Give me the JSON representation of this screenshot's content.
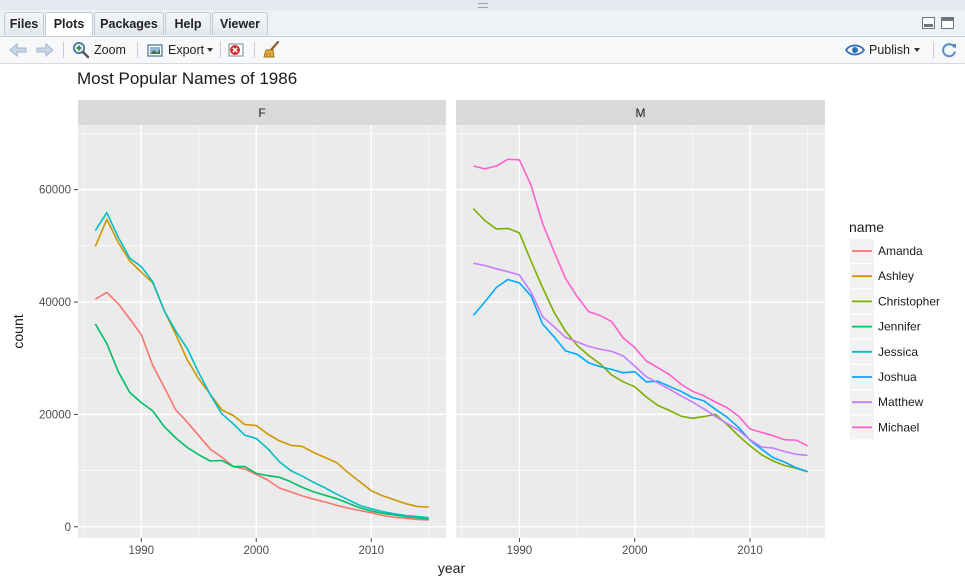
{
  "tabs": [
    {
      "label": "Files"
    },
    {
      "label": "Plots"
    },
    {
      "label": "Packages"
    },
    {
      "label": "Help"
    },
    {
      "label": "Viewer"
    }
  ],
  "toolbar": {
    "zoom_label": "Zoom",
    "export_label": "Export",
    "publish_label": "Publish"
  },
  "colors": {
    "panel_background": "#ebebeb",
    "strip_background": "#d9d9d9",
    "gridline": "#ffffff"
  },
  "chart_data": {
    "type": "line",
    "title": "Most Popular Names of 1986",
    "xlabel": "year",
    "ylabel": "count",
    "facets": [
      "F",
      "M"
    ],
    "legend_title": "name",
    "legend_position": "right",
    "grid": true,
    "xlim": [
      1984.5,
      2016.5
    ],
    "ylim": [
      -2000,
      71500
    ],
    "x_ticks": [
      1990,
      2000,
      2010
    ],
    "x_tick_labels": [
      "1990",
      "2000",
      "2010"
    ],
    "y_ticks": [
      0,
      20000,
      40000,
      60000
    ],
    "y_tick_labels": [
      "0",
      "20000",
      "40000",
      "60000"
    ],
    "x": [
      1986,
      1987,
      1988,
      1989,
      1990,
      1991,
      1992,
      1993,
      1994,
      1995,
      1996,
      1997,
      1998,
      1999,
      2000,
      2001,
      2002,
      2003,
      2004,
      2005,
      2006,
      2007,
      2008,
      2009,
      2010,
      2011,
      2012,
      2013,
      2014,
      2015
    ],
    "series": [
      {
        "name": "Amanda",
        "facet": "F",
        "color": "#F8766D",
        "values": [
          40500,
          41700,
          39700,
          37000,
          34200,
          28700,
          24800,
          20800,
          18600,
          16200,
          13800,
          12400,
          10700,
          10300,
          9300,
          8300,
          6900,
          6200,
          5500,
          4900,
          4400,
          3800,
          3300,
          2900,
          2500,
          2000,
          1700,
          1500,
          1300,
          1200
        ]
      },
      {
        "name": "Ashley",
        "facet": "F",
        "color": "#CD9600",
        "values": [
          49900,
          54700,
          50600,
          47300,
          45300,
          43400,
          38500,
          34200,
          29700,
          26300,
          23600,
          20800,
          19800,
          18200,
          18000,
          16500,
          15300,
          14500,
          14300,
          13200,
          12300,
          11400,
          9600,
          8000,
          6400,
          5500,
          4800,
          4100,
          3600,
          3500
        ]
      },
      {
        "name": "Christopher",
        "facet": "M",
        "color": "#7CAE00",
        "values": [
          56600,
          54500,
          53000,
          53100,
          52300,
          47300,
          42600,
          38200,
          34800,
          32300,
          30500,
          29000,
          27000,
          25800,
          24900,
          23100,
          21600,
          20700,
          19700,
          19300,
          19600,
          20000,
          18200,
          16200,
          14400,
          12800,
          11700,
          10900,
          10400,
          9800
        ]
      },
      {
        "name": "Jennifer",
        "facet": "F",
        "color": "#00BE67",
        "values": [
          36100,
          32600,
          27600,
          23900,
          22100,
          20600,
          17800,
          15800,
          14100,
          12800,
          11700,
          11800,
          10700,
          10700,
          9500,
          9100,
          8800,
          8000,
          7000,
          6200,
          5600,
          5000,
          4200,
          3400,
          2800,
          2400,
          2100,
          1800,
          1600,
          1400
        ]
      },
      {
        "name": "Jessica",
        "facet": "F",
        "color": "#00BFC4",
        "values": [
          52700,
          55900,
          51500,
          47800,
          46300,
          43600,
          38400,
          34800,
          31700,
          27400,
          23500,
          20100,
          18300,
          16300,
          15700,
          13900,
          11600,
          10000,
          9000,
          7900,
          6900,
          5800,
          4800,
          3800,
          3200,
          2700,
          2300,
          2000,
          1800,
          1600
        ]
      },
      {
        "name": "Joshua",
        "facet": "M",
        "color": "#00A9FF",
        "values": [
          37600,
          40000,
          42600,
          44000,
          43400,
          41100,
          36100,
          33800,
          31300,
          30700,
          29200,
          28500,
          28000,
          27400,
          27600,
          25800,
          25900,
          25000,
          24100,
          23000,
          22400,
          20900,
          19500,
          17700,
          15400,
          13800,
          12300,
          11500,
          10500,
          9800
        ]
      },
      {
        "name": "Matthew",
        "facet": "M",
        "color": "#C77CFF",
        "values": [
          46900,
          46500,
          45900,
          45400,
          44800,
          41800,
          37400,
          35600,
          33700,
          32900,
          32100,
          31600,
          31200,
          30400,
          28600,
          26700,
          25600,
          24500,
          23300,
          22200,
          21000,
          19600,
          18400,
          17200,
          15500,
          14200,
          14000,
          13400,
          12900,
          12700
        ]
      },
      {
        "name": "Michael",
        "facet": "M",
        "color": "#FF61CC",
        "values": [
          64200,
          63700,
          64200,
          65400,
          65300,
          60800,
          54000,
          49000,
          44200,
          41000,
          38300,
          37600,
          36500,
          33600,
          31900,
          29500,
          28300,
          27100,
          25400,
          24100,
          23300,
          22200,
          21200,
          19700,
          17400,
          16800,
          16200,
          15500,
          15400,
          14400
        ]
      }
    ]
  }
}
